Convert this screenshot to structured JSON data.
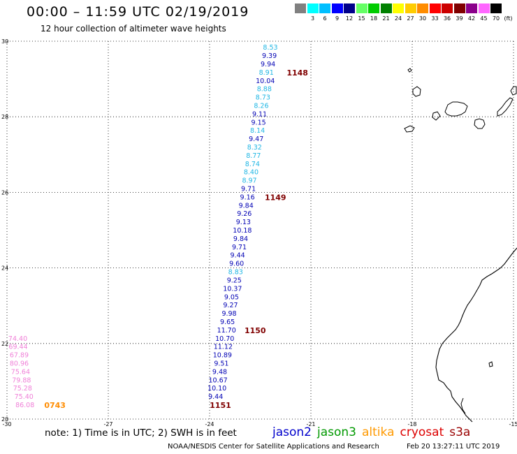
{
  "header": {
    "title": "00:00 – 11:59 UTC 02/19/2019",
    "subtitle": "12 hour collection of altimeter wave heights"
  },
  "legend": {
    "unit": "(ft)",
    "items": [
      {
        "label": "",
        "color": "#808080"
      },
      {
        "label": "3",
        "color": "#00ffff"
      },
      {
        "label": "6",
        "color": "#00bfff"
      },
      {
        "label": "9",
        "color": "#0000ff"
      },
      {
        "label": "12",
        "color": "#00008b"
      },
      {
        "label": "15",
        "color": "#66ff66"
      },
      {
        "label": "18",
        "color": "#00cc00"
      },
      {
        "label": "21",
        "color": "#008000"
      },
      {
        "label": "24",
        "color": "#ffff00"
      },
      {
        "label": "27",
        "color": "#ffcc00"
      },
      {
        "label": "30",
        "color": "#ff8c00"
      },
      {
        "label": "33",
        "color": "#ff0000"
      },
      {
        "label": "36",
        "color": "#cc0000"
      },
      {
        "label": "39",
        "color": "#800000"
      },
      {
        "label": "42",
        "color": "#8b008b"
      },
      {
        "label": "45",
        "color": "#ff66ff"
      },
      {
        "label": "70",
        "color": "#000000"
      }
    ]
  },
  "map": {
    "lat_range": [
      20,
      30
    ],
    "lon_range": [
      -30,
      -15
    ],
    "x_ticks": [
      "-30",
      "-27",
      "-24",
      "-21",
      "-18",
      "-15"
    ],
    "y_ticks": [
      "20",
      "22",
      "24",
      "26",
      "28",
      "30"
    ],
    "grid": "dotted",
    "colors": {
      "light_blue": "#1fb6e4",
      "dark_blue": "#0000b4",
      "pink": "#f080d8",
      "pass_label": "#800000",
      "altika": "#ff8c00"
    },
    "track_points": [
      {
        "lat": 29.83,
        "lon": -22.2,
        "value": "8.53",
        "color": "light_blue"
      },
      {
        "lat": 29.61,
        "lon": -22.23,
        "value": "9.39",
        "color": "dark_blue"
      },
      {
        "lat": 29.39,
        "lon": -22.27,
        "value": "9.94",
        "color": "dark_blue"
      },
      {
        "lat": 29.17,
        "lon": -22.32,
        "value": "8.91",
        "color": "light_blue"
      },
      {
        "lat": 28.95,
        "lon": -22.35,
        "value": "10.04",
        "color": "dark_blue"
      },
      {
        "lat": 28.73,
        "lon": -22.38,
        "value": "8.88",
        "color": "light_blue"
      },
      {
        "lat": 28.51,
        "lon": -22.42,
        "value": "8.73",
        "color": "light_blue"
      },
      {
        "lat": 28.29,
        "lon": -22.47,
        "value": "8.26",
        "color": "light_blue"
      },
      {
        "lat": 28.07,
        "lon": -22.52,
        "value": "9.11",
        "color": "dark_blue"
      },
      {
        "lat": 27.85,
        "lon": -22.55,
        "value": "9.15",
        "color": "dark_blue"
      },
      {
        "lat": 27.63,
        "lon": -22.58,
        "value": "8.14",
        "color": "light_blue"
      },
      {
        "lat": 27.41,
        "lon": -22.62,
        "value": "9.47",
        "color": "dark_blue"
      },
      {
        "lat": 27.19,
        "lon": -22.67,
        "value": "8.32",
        "color": "light_blue"
      },
      {
        "lat": 26.97,
        "lon": -22.7,
        "value": "8.77",
        "color": "light_blue"
      },
      {
        "lat": 26.75,
        "lon": -22.73,
        "value": "8.74",
        "color": "light_blue"
      },
      {
        "lat": 26.53,
        "lon": -22.77,
        "value": "8.40",
        "color": "light_blue"
      },
      {
        "lat": 26.31,
        "lon": -22.82,
        "value": "8.97",
        "color": "light_blue"
      },
      {
        "lat": 26.09,
        "lon": -22.85,
        "value": "9.71",
        "color": "dark_blue"
      },
      {
        "lat": 25.87,
        "lon": -22.88,
        "value": "9.16",
        "color": "dark_blue"
      },
      {
        "lat": 25.65,
        "lon": -22.92,
        "value": "9.84",
        "color": "dark_blue"
      },
      {
        "lat": 25.43,
        "lon": -22.97,
        "value": "9.26",
        "color": "dark_blue"
      },
      {
        "lat": 25.21,
        "lon": -23.0,
        "value": "9.13",
        "color": "dark_blue"
      },
      {
        "lat": 24.99,
        "lon": -23.03,
        "value": "10.18",
        "color": "dark_blue"
      },
      {
        "lat": 24.77,
        "lon": -23.08,
        "value": "9.84",
        "color": "dark_blue"
      },
      {
        "lat": 24.55,
        "lon": -23.12,
        "value": "9.71",
        "color": "dark_blue"
      },
      {
        "lat": 24.33,
        "lon": -23.17,
        "value": "9.44",
        "color": "dark_blue"
      },
      {
        "lat": 24.11,
        "lon": -23.2,
        "value": "9.60",
        "color": "dark_blue"
      },
      {
        "lat": 23.89,
        "lon": -23.23,
        "value": "8.83",
        "color": "light_blue"
      },
      {
        "lat": 23.67,
        "lon": -23.27,
        "value": "9.25",
        "color": "dark_blue"
      },
      {
        "lat": 23.45,
        "lon": -23.32,
        "value": "10.37",
        "color": "dark_blue"
      },
      {
        "lat": 23.23,
        "lon": -23.35,
        "value": "9.05",
        "color": "dark_blue"
      },
      {
        "lat": 23.01,
        "lon": -23.38,
        "value": "9.27",
        "color": "dark_blue"
      },
      {
        "lat": 22.79,
        "lon": -23.42,
        "value": "9.98",
        "color": "dark_blue"
      },
      {
        "lat": 22.57,
        "lon": -23.47,
        "value": "9.65",
        "color": "dark_blue"
      },
      {
        "lat": 22.35,
        "lon": -23.5,
        "value": "11.70",
        "color": "dark_blue"
      },
      {
        "lat": 22.13,
        "lon": -23.55,
        "value": "10.70",
        "color": "dark_blue"
      },
      {
        "lat": 21.91,
        "lon": -23.6,
        "value": "11.12",
        "color": "dark_blue"
      },
      {
        "lat": 21.69,
        "lon": -23.62,
        "value": "10.89",
        "color": "dark_blue"
      },
      {
        "lat": 21.47,
        "lon": -23.65,
        "value": "9.51",
        "color": "dark_blue"
      },
      {
        "lat": 21.25,
        "lon": -23.7,
        "value": "9.48",
        "color": "dark_blue"
      },
      {
        "lat": 21.03,
        "lon": -23.75,
        "value": "10.67",
        "color": "dark_blue"
      },
      {
        "lat": 20.81,
        "lon": -23.78,
        "value": "10.10",
        "color": "dark_blue"
      },
      {
        "lat": 20.59,
        "lon": -23.82,
        "value": "9.44",
        "color": "dark_blue"
      }
    ],
    "edge_points": [
      {
        "lat": 22.13,
        "lon": -29.96,
        "value": "74.40",
        "color": "pink"
      },
      {
        "lat": 21.91,
        "lon": -29.95,
        "value": "69.44",
        "color": "pink"
      },
      {
        "lat": 21.69,
        "lon": -29.92,
        "value": "67.89",
        "color": "pink"
      },
      {
        "lat": 21.47,
        "lon": -29.92,
        "value": "80.96",
        "color": "pink"
      },
      {
        "lat": 21.25,
        "lon": -29.88,
        "value": "75.64",
        "color": "pink"
      },
      {
        "lat": 21.03,
        "lon": -29.85,
        "value": "79.88",
        "color": "pink"
      },
      {
        "lat": 20.81,
        "lon": -29.82,
        "value": "75.28",
        "color": "pink"
      },
      {
        "lat": 20.59,
        "lon": -29.78,
        "value": "75.40",
        "color": "pink"
      },
      {
        "lat": 20.37,
        "lon": -29.75,
        "value": "86.08",
        "color": "pink"
      }
    ],
    "pass_labels": [
      {
        "lat": 29.17,
        "lon": -21.4,
        "text": "1148",
        "color": "pass_label"
      },
      {
        "lat": 25.87,
        "lon": -22.05,
        "text": "1149",
        "color": "pass_label"
      },
      {
        "lat": 22.35,
        "lon": -22.65,
        "text": "1150",
        "color": "pass_label"
      },
      {
        "lat": 20.37,
        "lon": -23.68,
        "text": "1151",
        "color": "pass_label"
      },
      {
        "lat": 20.37,
        "lon": -28.58,
        "text": "0743",
        "color": "altika"
      }
    ]
  },
  "footer": {
    "note": "note:  1) Time is in UTC;  2) SWH is in feet",
    "satellites": [
      {
        "name": "jason2",
        "color": "#0000cc"
      },
      {
        "name": "jason3",
        "color": "#009900"
      },
      {
        "name": "altika",
        "color": "#ff9900"
      },
      {
        "name": "cryosat",
        "color": "#dd0000"
      },
      {
        "name": "s3a",
        "color": "#990000"
      }
    ],
    "credit": "NOAA/NESDIS Center for Satellite Applications and Research",
    "timestamp": "Feb 20 13:27:11 UTC 2019"
  }
}
